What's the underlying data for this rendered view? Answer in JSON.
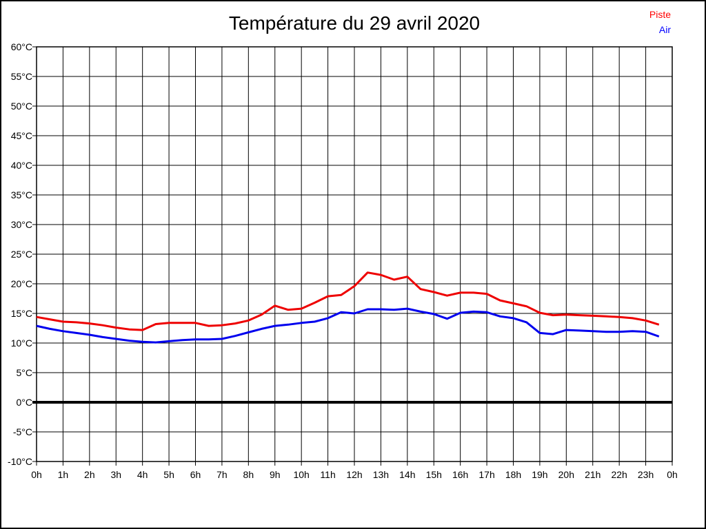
{
  "title": "Température du 29 avril 2020",
  "legend": {
    "items": [
      {
        "label": "Piste",
        "color": "#ff0000"
      },
      {
        "label": "Air",
        "color": "#0000ff"
      }
    ]
  },
  "chart_data": {
    "type": "line",
    "title": "Température du 29 avril 2020",
    "xlabel": "",
    "ylabel": "",
    "x_unit": "hours",
    "y_unit": "°C",
    "xlim": [
      0,
      24
    ],
    "ylim": [
      -10,
      60
    ],
    "grid": true,
    "legend_position": "top-right",
    "zero_line_thick": true,
    "x_ticks": {
      "values": [
        0,
        1,
        2,
        3,
        4,
        5,
        6,
        7,
        8,
        9,
        10,
        11,
        12,
        13,
        14,
        15,
        16,
        17,
        18,
        19,
        20,
        21,
        22,
        23,
        24
      ],
      "labels": [
        "0h",
        "1h",
        "2h",
        "3h",
        "4h",
        "5h",
        "6h",
        "7h",
        "8h",
        "9h",
        "10h",
        "11h",
        "12h",
        "13h",
        "14h",
        "15h",
        "16h",
        "17h",
        "18h",
        "19h",
        "20h",
        "21h",
        "22h",
        "23h",
        "0h"
      ]
    },
    "y_ticks": {
      "values": [
        60,
        55,
        50,
        45,
        40,
        35,
        30,
        25,
        20,
        15,
        10,
        5,
        0,
        -5,
        -10
      ],
      "labels": [
        "60°C",
        "55°C",
        "50°C",
        "45°C",
        "40°C",
        "35°C",
        "30°C",
        "25°C",
        "20°C",
        "15°C",
        "10°C",
        "5°C",
        "0°C",
        "-5°C",
        "-10°C"
      ]
    },
    "x": [
      0,
      0.5,
      1,
      1.5,
      2,
      2.5,
      3,
      3.5,
      4,
      4.5,
      5,
      5.5,
      6,
      6.5,
      7,
      7.5,
      8,
      8.5,
      9,
      9.5,
      10,
      10.5,
      11,
      11.5,
      12,
      12.5,
      13,
      13.5,
      14,
      14.5,
      15,
      15.5,
      16,
      16.5,
      17,
      17.5,
      18,
      18.5,
      19,
      19.5,
      20,
      20.5,
      21,
      21.5,
      22,
      22.5,
      23,
      23.5
    ],
    "series": [
      {
        "name": "Piste",
        "color": "#ee0000",
        "values": [
          14.4,
          14.0,
          13.6,
          13.5,
          13.3,
          13.0,
          12.6,
          12.3,
          12.2,
          13.2,
          13.4,
          13.4,
          13.4,
          12.9,
          13.0,
          13.3,
          13.8,
          14.8,
          16.3,
          15.6,
          15.8,
          16.8,
          17.9,
          18.1,
          19.6,
          21.9,
          21.5,
          20.7,
          21.2,
          19.1,
          18.6,
          18.0,
          18.5,
          18.5,
          18.3,
          17.2,
          16.7,
          16.2,
          15.1,
          14.7,
          14.8,
          14.7,
          14.6,
          14.5,
          14.4,
          14.2,
          13.8,
          13.1
        ]
      },
      {
        "name": "Air",
        "color": "#0000ee",
        "values": [
          12.9,
          12.4,
          12.0,
          11.7,
          11.4,
          11.0,
          10.7,
          10.4,
          10.2,
          10.1,
          10.3,
          10.5,
          10.6,
          10.6,
          10.7,
          11.2,
          11.8,
          12.4,
          12.9,
          13.1,
          13.4,
          13.6,
          14.2,
          15.2,
          15.0,
          15.7,
          15.7,
          15.6,
          15.8,
          15.3,
          14.9,
          14.1,
          15.1,
          15.3,
          15.2,
          14.5,
          14.2,
          13.5,
          11.7,
          11.5,
          12.2,
          12.1,
          12.0,
          11.9,
          11.9,
          12.0,
          11.9,
          11.1
        ]
      }
    ]
  }
}
